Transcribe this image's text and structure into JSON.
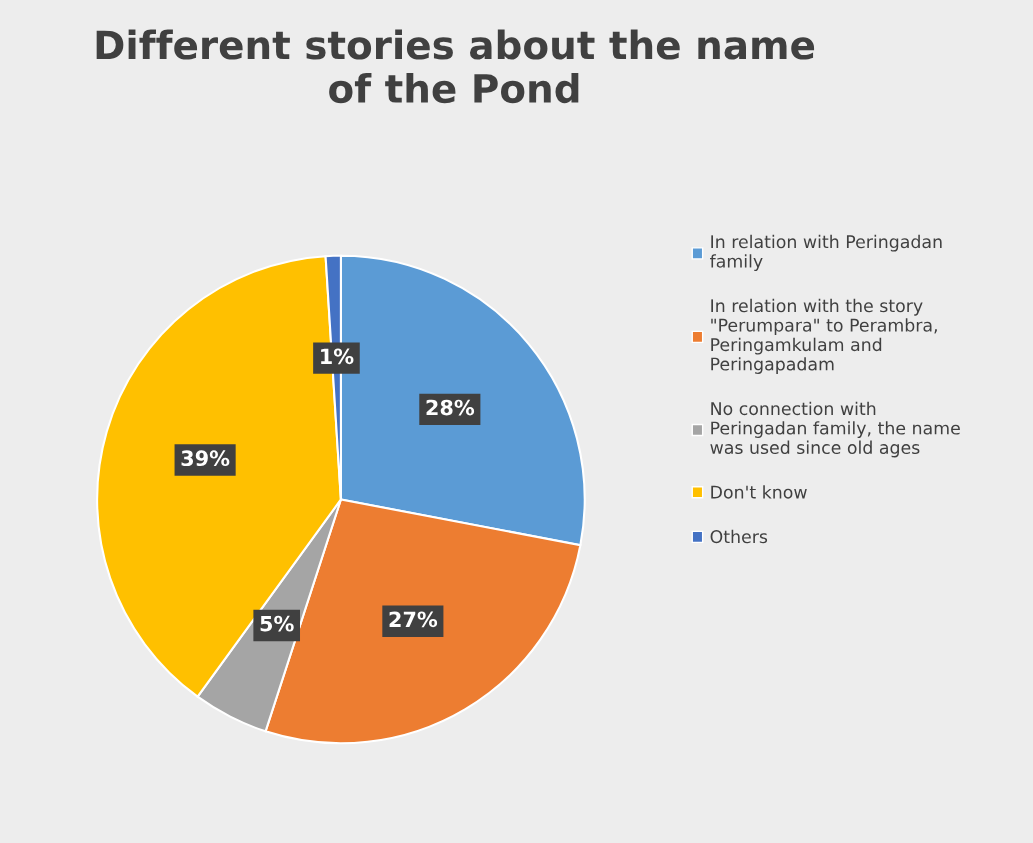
{
  "chart_data": {
    "type": "pie",
    "title": "Different stories about the name of the Pond",
    "categories": [
      "In relation with Peringadan family",
      "In relation with the story \"Perumpara\" to Perambra, Peringamkulam and Peringapadam",
      "No connection with Peringadan family, the name was used since old ages",
      "Don't know",
      "Others"
    ],
    "values": [
      28,
      27,
      5,
      39,
      1
    ],
    "colors": [
      "#5b9bd5",
      "#ed7d31",
      "#a5a5a5",
      "#ffc000",
      "#4472c4"
    ],
    "value_labels": [
      "28%",
      "27%",
      "5%",
      "39%",
      "1%"
    ],
    "legend": "right"
  }
}
